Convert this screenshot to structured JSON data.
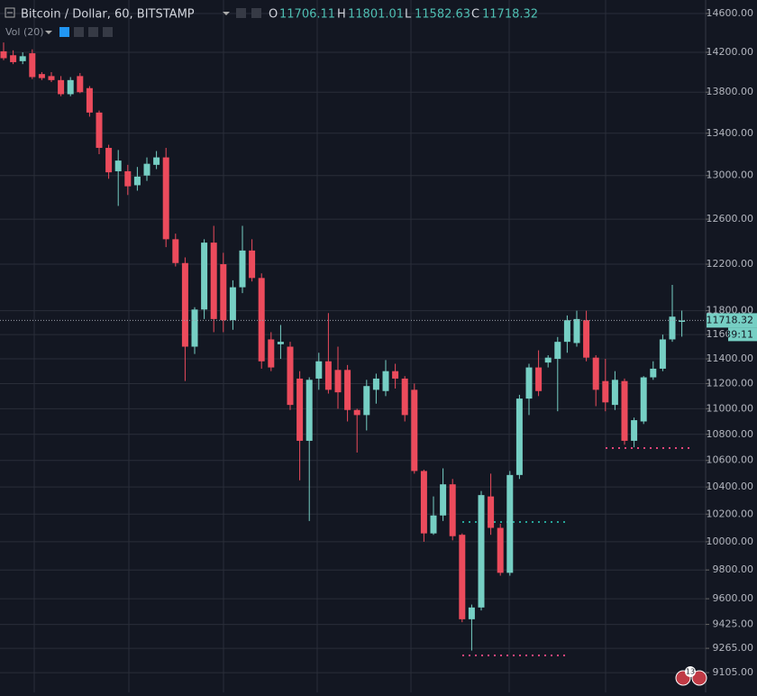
{
  "chart_data": {
    "type": "candlestick",
    "title": "Bitcoin / Dollar, 60, BITSTAMP",
    "ohlc_labels": [
      "O",
      "H",
      "L",
      "C"
    ],
    "indicator": "Vol (20)",
    "countdown": "39:11",
    "badge": "13",
    "log_scale": true,
    "grid": true,
    "up_color": "#76cfc4",
    "down_color": "#ec4b5c",
    "categories": [
      null,
      null,
      null,
      null,
      null,
      null,
      null,
      null,
      null,
      null,
      null,
      null,
      null,
      null,
      null,
      null,
      null,
      null,
      null,
      null,
      null,
      null,
      null,
      null,
      null,
      null,
      null,
      null,
      null,
      null,
      null,
      null,
      null,
      null,
      null,
      null,
      null,
      null,
      null,
      null,
      null,
      null,
      null,
      null,
      null,
      null,
      null,
      null,
      null,
      null,
      null,
      null,
      null,
      null,
      null,
      null,
      null,
      null,
      null,
      null,
      null,
      null,
      null,
      null,
      null,
      null,
      null,
      null,
      null,
      null,
      null,
      null
    ],
    "open": [
      14210,
      14170,
      14110,
      14190,
      13980,
      13960,
      13920,
      13780,
      13960,
      13840,
      13600,
      13260,
      13040,
      13040,
      12910,
      13000,
      13100,
      13170,
      12420,
      12210,
      11500,
      11810,
      12390,
      12200,
      11720,
      12000,
      12320,
      12080,
      11560,
      11520,
      11500,
      11240,
      10750,
      11240,
      11380,
      11310,
      11310,
      10990,
      10950,
      11150,
      11140,
      11300,
      11240,
      11150,
      10520,
      10060,
      10190,
      10420,
      10050,
      9460,
      9540,
      10330,
      10100,
      9780,
      10490,
      11080,
      11330,
      11370,
      11400,
      11540,
      11530,
      11720,
      11410,
      11220,
      11030,
      11220,
      10750,
      10900,
      11250,
      11320,
      11560,
      11706.11
    ],
    "high": [
      14300,
      14220,
      14200,
      14230,
      14000,
      14000,
      13960,
      13950,
      13990,
      13860,
      13620,
      13290,
      13240,
      13100,
      13080,
      13170,
      13230,
      13260,
      12470,
      12260,
      11830,
      12420,
      12540,
      12300,
      12060,
      12540,
      12420,
      12120,
      11620,
      11680,
      11540,
      11300,
      11250,
      11450,
      11780,
      11500,
      11350,
      11000,
      11230,
      11280,
      11390,
      11360,
      11260,
      11200,
      10530,
      10330,
      10540,
      10460,
      10060,
      9560,
      10370,
      10500,
      10130,
      10520,
      11110,
      11360,
      11470,
      11430,
      11580,
      11760,
      11800,
      11800,
      11430,
      11400,
      11300,
      11240,
      10930,
      11260,
      11380,
      11600,
      12020,
      11801.01
    ],
    "low": [
      14120,
      14080,
      14080,
      13930,
      13920,
      13900,
      13760,
      13760,
      13790,
      13560,
      13200,
      12970,
      12720,
      12820,
      12860,
      12950,
      13060,
      12350,
      12180,
      11220,
      11440,
      11730,
      11620,
      11620,
      11640,
      11950,
      12050,
      11320,
      11300,
      11400,
      10990,
      10450,
      10150,
      11150,
      11120,
      11000,
      10900,
      10660,
      10830,
      11040,
      11100,
      11160,
      10900,
      10500,
      10000,
      10050,
      10150,
      10010,
      9440,
      9250,
      9520,
      10050,
      9760,
      9760,
      10460,
      10950,
      11100,
      11330,
      10980,
      11450,
      11500,
      11380,
      11020,
      10980,
      10990,
      10720,
      10700,
      10880,
      11230,
      11300,
      11540,
      11582.63
    ],
    "close": [
      14140,
      14100,
      14160,
      13950,
      13940,
      13920,
      13780,
      13920,
      13800,
      13600,
      13260,
      13030,
      13140,
      12900,
      12990,
      13110,
      13170,
      12420,
      12210,
      11500,
      11810,
      12390,
      11730,
      11720,
      12000,
      12320,
      12080,
      11380,
      11330,
      11540,
      11030,
      10750,
      11230,
      11380,
      11150,
      11130,
      10990,
      10950,
      11180,
      11240,
      11300,
      11240,
      10950,
      10520,
      10060,
      10190,
      10420,
      10040,
      9460,
      9540,
      10340,
      10100,
      9780,
      10490,
      11080,
      11330,
      11140,
      11410,
      11540,
      11720,
      11730,
      11410,
      11150,
      11050,
      11230,
      10750,
      10910,
      11250,
      11320,
      11560,
      11750,
      11718.32
    ],
    "ylim": [
      8977,
      14742
    ],
    "yticks": [
      {
        "value": 14600,
        "label": "14600.00"
      },
      {
        "value": 14200,
        "label": "14200.00"
      },
      {
        "value": 13800,
        "label": "13800.00"
      },
      {
        "value": 13400,
        "label": "13400.00"
      },
      {
        "value": 13000,
        "label": "13000.00"
      },
      {
        "value": 12600,
        "label": "12600.00"
      },
      {
        "value": 12200,
        "label": "12200.00"
      },
      {
        "value": 11800,
        "label": "11800.00"
      },
      {
        "value": 11600,
        "label": "11600.00"
      },
      {
        "value": 11400,
        "label": "11400.00"
      },
      {
        "value": 11200,
        "label": "11200.00"
      },
      {
        "value": 11000,
        "label": "11000.00"
      },
      {
        "value": 10800,
        "label": "10800.00"
      },
      {
        "value": 10600,
        "label": "10600.00"
      },
      {
        "value": 10400,
        "label": "10400.00"
      },
      {
        "value": 10200,
        "label": "10200.00"
      },
      {
        "value": 10000,
        "label": "10000.00"
      },
      {
        "value": 9800,
        "label": "9800.00"
      },
      {
        "value": 9600,
        "label": "9600.00"
      },
      {
        "value": 9425,
        "label": "9425.00"
      },
      {
        "value": 9265,
        "label": "9265.00"
      },
      {
        "value": 9105,
        "label": "9105.00"
      }
    ]
  }
}
